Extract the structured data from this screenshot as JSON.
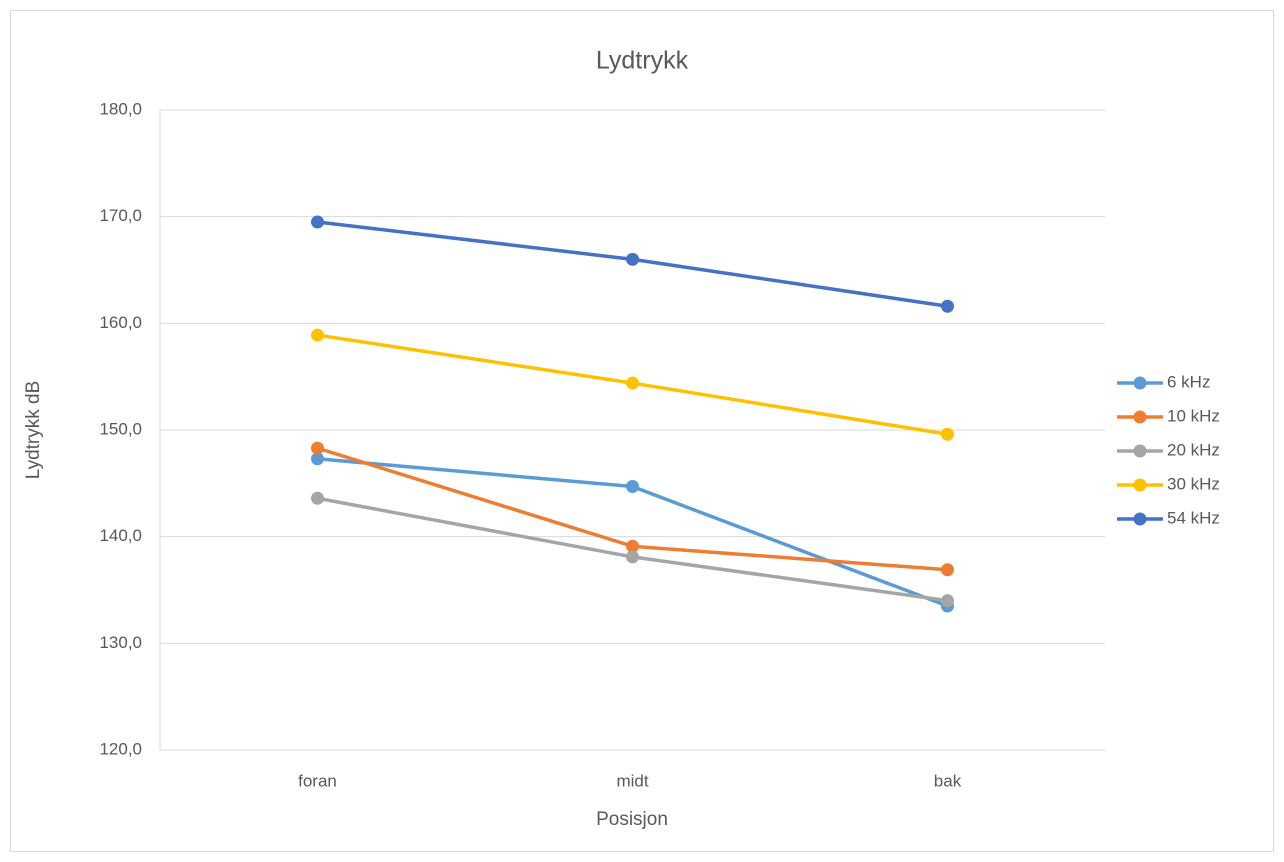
{
  "chart_data": {
    "type": "line",
    "title": "Lydtrykk",
    "x_label": "Posisjon",
    "y_label": "Lydtrykk dB",
    "categories": [
      "foran",
      "midt",
      "bak"
    ],
    "series": [
      {
        "name": "6 kHz",
        "color": "#5b9bd5",
        "values": [
          147.3,
          144.7,
          133.5
        ]
      },
      {
        "name": "10 kHz",
        "color": "#ed7d31",
        "values": [
          148.3,
          139.1,
          136.9
        ]
      },
      {
        "name": "20 kHz",
        "color": "#a5a5a5",
        "values": [
          143.6,
          138.1,
          134.0
        ]
      },
      {
        "name": "30 kHz",
        "color": "#ffc000",
        "values": [
          158.9,
          154.4,
          149.6
        ]
      },
      {
        "name": "54 kHz",
        "color": "#4472c4",
        "values": [
          169.5,
          166.0,
          161.6
        ]
      }
    ],
    "ylim": [
      120,
      180
    ],
    "yticks": [
      {
        "value": 120,
        "label": "120,0"
      },
      {
        "value": 130,
        "label": "130,0"
      },
      {
        "value": 140,
        "label": "140,0"
      },
      {
        "value": 150,
        "label": "150,0"
      },
      {
        "value": 160,
        "label": "160,0"
      },
      {
        "value": 170,
        "label": "170,0"
      },
      {
        "value": 180,
        "label": "180,0"
      }
    ],
    "grid": true,
    "legend": "right"
  }
}
